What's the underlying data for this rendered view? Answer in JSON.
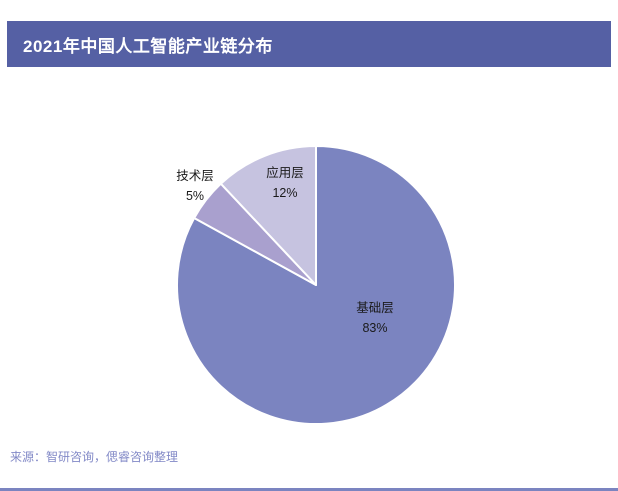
{
  "header": {
    "title": "2021年中国人工智能产业链分布",
    "bg_color": "#5560a4"
  },
  "chart_data": {
    "type": "pie",
    "title": "2021年中国人工智能产业链分布",
    "start_angle_deg": 0,
    "direction": "clockwise",
    "legend": "none",
    "slices": [
      {
        "label": "基础层",
        "value": 83,
        "pct_label": "83%",
        "color": "#7b84c0",
        "label_position": "inside"
      },
      {
        "label": "技术层",
        "value": 5,
        "pct_label": "5%",
        "color": "#a9a0ce",
        "label_position": "outside"
      },
      {
        "label": "应用层",
        "value": 12,
        "pct_label": "12%",
        "color": "#c6c3e0",
        "label_position": "inside"
      }
    ]
  },
  "footer": {
    "source_text": "来源：智研咨询，偲睿咨询整理",
    "accent_color": "#7b84c0"
  }
}
